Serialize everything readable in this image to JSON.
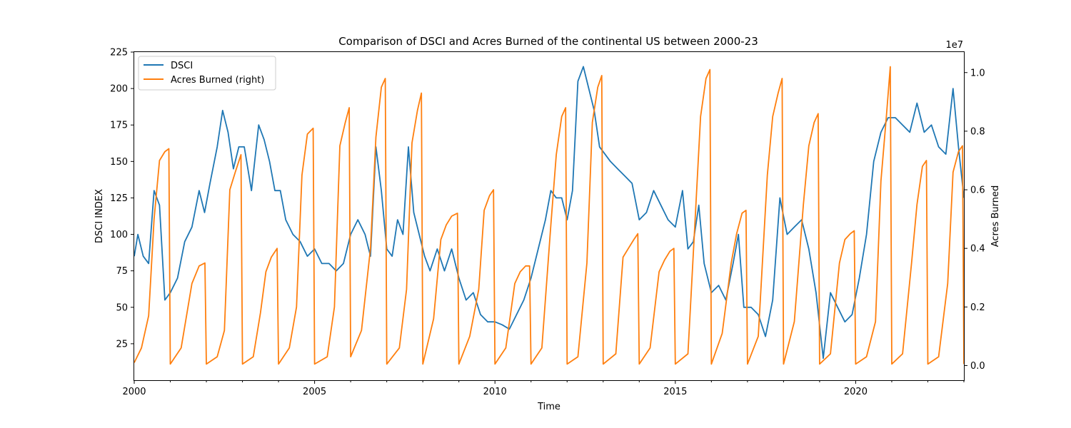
{
  "chart_data": {
    "type": "line",
    "title": "Comparison of DSCI and Acres Burned of the continental US between 2000-23",
    "xlabel": "Time",
    "ylabel_left": "DSCI INDEX",
    "ylabel_right": "Acres Burned",
    "right_axis_multiplier": "1e7",
    "xlim": [
      2000.0,
      2023.0
    ],
    "ylim_left": [
      0,
      225
    ],
    "ylim_right": [
      -500000,
      10700000
    ],
    "x_ticks": [
      2000,
      2005,
      2010,
      2015,
      2020
    ],
    "x_tick_labels": [
      "2000",
      "2005",
      "2010",
      "2015",
      "2020"
    ],
    "y_ticks_left": [
      25,
      50,
      75,
      100,
      125,
      150,
      175,
      200,
      225
    ],
    "y_tick_labels_left": [
      "25",
      "50",
      "75",
      "100",
      "125",
      "150",
      "175",
      "200",
      "225"
    ],
    "y_ticks_right": [
      0,
      2000000,
      4000000,
      6000000,
      8000000,
      10000000
    ],
    "y_tick_labels_right": [
      "0.0",
      "0.2",
      "0.4",
      "0.6",
      "0.8",
      "1.0"
    ],
    "legend_position": "top-left",
    "grid": false,
    "series": [
      {
        "name": "DSCI",
        "axis": "left",
        "color": "#1f77b4",
        "x": [
          2000.0,
          2000.1,
          2000.25,
          2000.4,
          2000.55,
          2000.7,
          2000.85,
          2001.0,
          2001.2,
          2001.4,
          2001.6,
          2001.8,
          2001.95,
          2002.1,
          2002.3,
          2002.45,
          2002.6,
          2002.75,
          2002.9,
          2003.05,
          2003.25,
          2003.45,
          2003.6,
          2003.75,
          2003.9,
          2004.05,
          2004.2,
          2004.4,
          2004.6,
          2004.8,
          2005.0,
          2005.2,
          2005.4,
          2005.6,
          2005.8,
          2006.0,
          2006.2,
          2006.4,
          2006.55,
          2006.7,
          2006.85,
          2007.0,
          2007.15,
          2007.3,
          2007.45,
          2007.6,
          2007.75,
          2007.9,
          2008.05,
          2008.2,
          2008.4,
          2008.6,
          2008.8,
          2009.0,
          2009.2,
          2009.4,
          2009.6,
          2009.8,
          2010.0,
          2010.2,
          2010.4,
          2010.6,
          2010.8,
          2011.0,
          2011.2,
          2011.4,
          2011.55,
          2011.7,
          2011.85,
          2012.0,
          2012.15,
          2012.3,
          2012.45,
          2012.6,
          2012.75,
          2012.9,
          2013.05,
          2013.2,
          2013.4,
          2013.6,
          2013.8,
          2014.0,
          2014.2,
          2014.4,
          2014.6,
          2014.8,
          2015.0,
          2015.2,
          2015.35,
          2015.5,
          2015.65,
          2015.8,
          2016.0,
          2016.2,
          2016.4,
          2016.6,
          2016.75,
          2016.9,
          2017.1,
          2017.3,
          2017.5,
          2017.7,
          2017.9,
          2018.1,
          2018.3,
          2018.5,
          2018.7,
          2018.9,
          2019.1,
          2019.3,
          2019.5,
          2019.7,
          2019.9,
          2020.1,
          2020.3,
          2020.5,
          2020.7,
          2020.9,
          2021.1,
          2021.3,
          2021.5,
          2021.7,
          2021.9,
          2022.1,
          2022.3,
          2022.5,
          2022.7,
          2022.85,
          2023.0
        ],
        "values": [
          85,
          100,
          85,
          80,
          130,
          120,
          55,
          60,
          70,
          95,
          105,
          130,
          115,
          135,
          160,
          185,
          170,
          145,
          160,
          160,
          130,
          175,
          165,
          150,
          130,
          130,
          110,
          100,
          95,
          85,
          90,
          80,
          80,
          75,
          80,
          100,
          110,
          100,
          85,
          160,
          130,
          90,
          85,
          110,
          100,
          160,
          115,
          100,
          85,
          75,
          90,
          75,
          90,
          70,
          55,
          60,
          45,
          40,
          40,
          38,
          35,
          45,
          55,
          70,
          90,
          110,
          130,
          125,
          125,
          110,
          130,
          205,
          215,
          200,
          185,
          160,
          155,
          150,
          145,
          140,
          135,
          110,
          115,
          130,
          120,
          110,
          105,
          130,
          90,
          95,
          120,
          80,
          60,
          65,
          55,
          80,
          100,
          50,
          50,
          45,
          30,
          55,
          125,
          100,
          105,
          110,
          90,
          60,
          15,
          60,
          50,
          40,
          45,
          70,
          100,
          150,
          170,
          180,
          180,
          175,
          170,
          190,
          170,
          175,
          160,
          155,
          200,
          160,
          125
        ]
      },
      {
        "name": "Acres Burned (right)",
        "axis": "right",
        "color": "#ff7f0e",
        "x": [
          2000.0,
          2000.2,
          2000.4,
          2000.55,
          2000.7,
          2000.85,
          2000.96,
          2001.0,
          2001.3,
          2001.6,
          2001.8,
          2001.96,
          2002.0,
          2002.3,
          2002.5,
          2002.65,
          2002.8,
          2002.96,
          2003.0,
          2003.3,
          2003.5,
          2003.65,
          2003.8,
          2003.96,
          2004.0,
          2004.3,
          2004.5,
          2004.65,
          2004.8,
          2004.96,
          2005.0,
          2005.35,
          2005.55,
          2005.7,
          2005.85,
          2005.96,
          2006.0,
          2006.3,
          2006.55,
          2006.7,
          2006.85,
          2006.96,
          2007.0,
          2007.35,
          2007.55,
          2007.7,
          2007.85,
          2007.96,
          2008.0,
          2008.3,
          2008.5,
          2008.65,
          2008.8,
          2008.96,
          2009.0,
          2009.3,
          2009.55,
          2009.7,
          2009.85,
          2009.96,
          2010.0,
          2010.3,
          2010.55,
          2010.7,
          2010.85,
          2010.96,
          2011.0,
          2011.3,
          2011.55,
          2011.7,
          2011.85,
          2011.96,
          2012.0,
          2012.3,
          2012.55,
          2012.7,
          2012.85,
          2012.96,
          2013.0,
          2013.35,
          2013.55,
          2013.7,
          2013.85,
          2013.96,
          2014.0,
          2014.3,
          2014.55,
          2014.7,
          2014.85,
          2014.96,
          2015.0,
          2015.35,
          2015.55,
          2015.7,
          2015.85,
          2015.96,
          2016.0,
          2016.3,
          2016.55,
          2016.7,
          2016.85,
          2016.96,
          2017.0,
          2017.3,
          2017.55,
          2017.7,
          2017.85,
          2017.96,
          2018.0,
          2018.3,
          2018.55,
          2018.7,
          2018.85,
          2018.96,
          2019.0,
          2019.3,
          2019.55,
          2019.7,
          2019.85,
          2019.96,
          2020.0,
          2020.3,
          2020.55,
          2020.7,
          2020.85,
          2020.96,
          2021.0,
          2021.3,
          2021.55,
          2021.7,
          2021.85,
          2021.96,
          2022.0,
          2022.3,
          2022.55,
          2022.7,
          2022.85,
          2022.96,
          2023.0
        ],
        "values": [
          100000,
          600000,
          1700000,
          5000000,
          7000000,
          7300000,
          7400000,
          50000,
          600000,
          2800000,
          3400000,
          3500000,
          50000,
          300000,
          1200000,
          6000000,
          6600000,
          7200000,
          50000,
          300000,
          1800000,
          3200000,
          3700000,
          4000000,
          50000,
          600000,
          2000000,
          6500000,
          7900000,
          8100000,
          50000,
          300000,
          2000000,
          7500000,
          8300000,
          8800000,
          300000,
          1200000,
          4000000,
          7800000,
          9500000,
          9800000,
          50000,
          600000,
          2600000,
          7600000,
          8700000,
          9300000,
          50000,
          1600000,
          4300000,
          4800000,
          5100000,
          5200000,
          50000,
          1000000,
          2600000,
          5300000,
          5800000,
          6000000,
          50000,
          600000,
          2800000,
          3200000,
          3400000,
          3400000,
          50000,
          600000,
          4800000,
          7200000,
          8500000,
          8800000,
          50000,
          300000,
          3500000,
          8300000,
          9500000,
          9900000,
          50000,
          400000,
          3700000,
          4000000,
          4300000,
          4500000,
          50000,
          600000,
          3200000,
          3600000,
          3900000,
          4000000,
          50000,
          400000,
          5000000,
          8500000,
          9800000,
          10100000,
          50000,
          1100000,
          3500000,
          4500000,
          5200000,
          5300000,
          50000,
          1000000,
          6500000,
          8500000,
          9300000,
          9800000,
          50000,
          1500000,
          5500000,
          7500000,
          8300000,
          8600000,
          50000,
          400000,
          3500000,
          4300000,
          4500000,
          4600000,
          50000,
          300000,
          1500000,
          6300000,
          8500000,
          10200000,
          50000,
          400000,
          3500000,
          5500000,
          6800000,
          7000000,
          50000,
          300000,
          2800000,
          6600000,
          7300000,
          7500000,
          50000
        ]
      }
    ]
  }
}
